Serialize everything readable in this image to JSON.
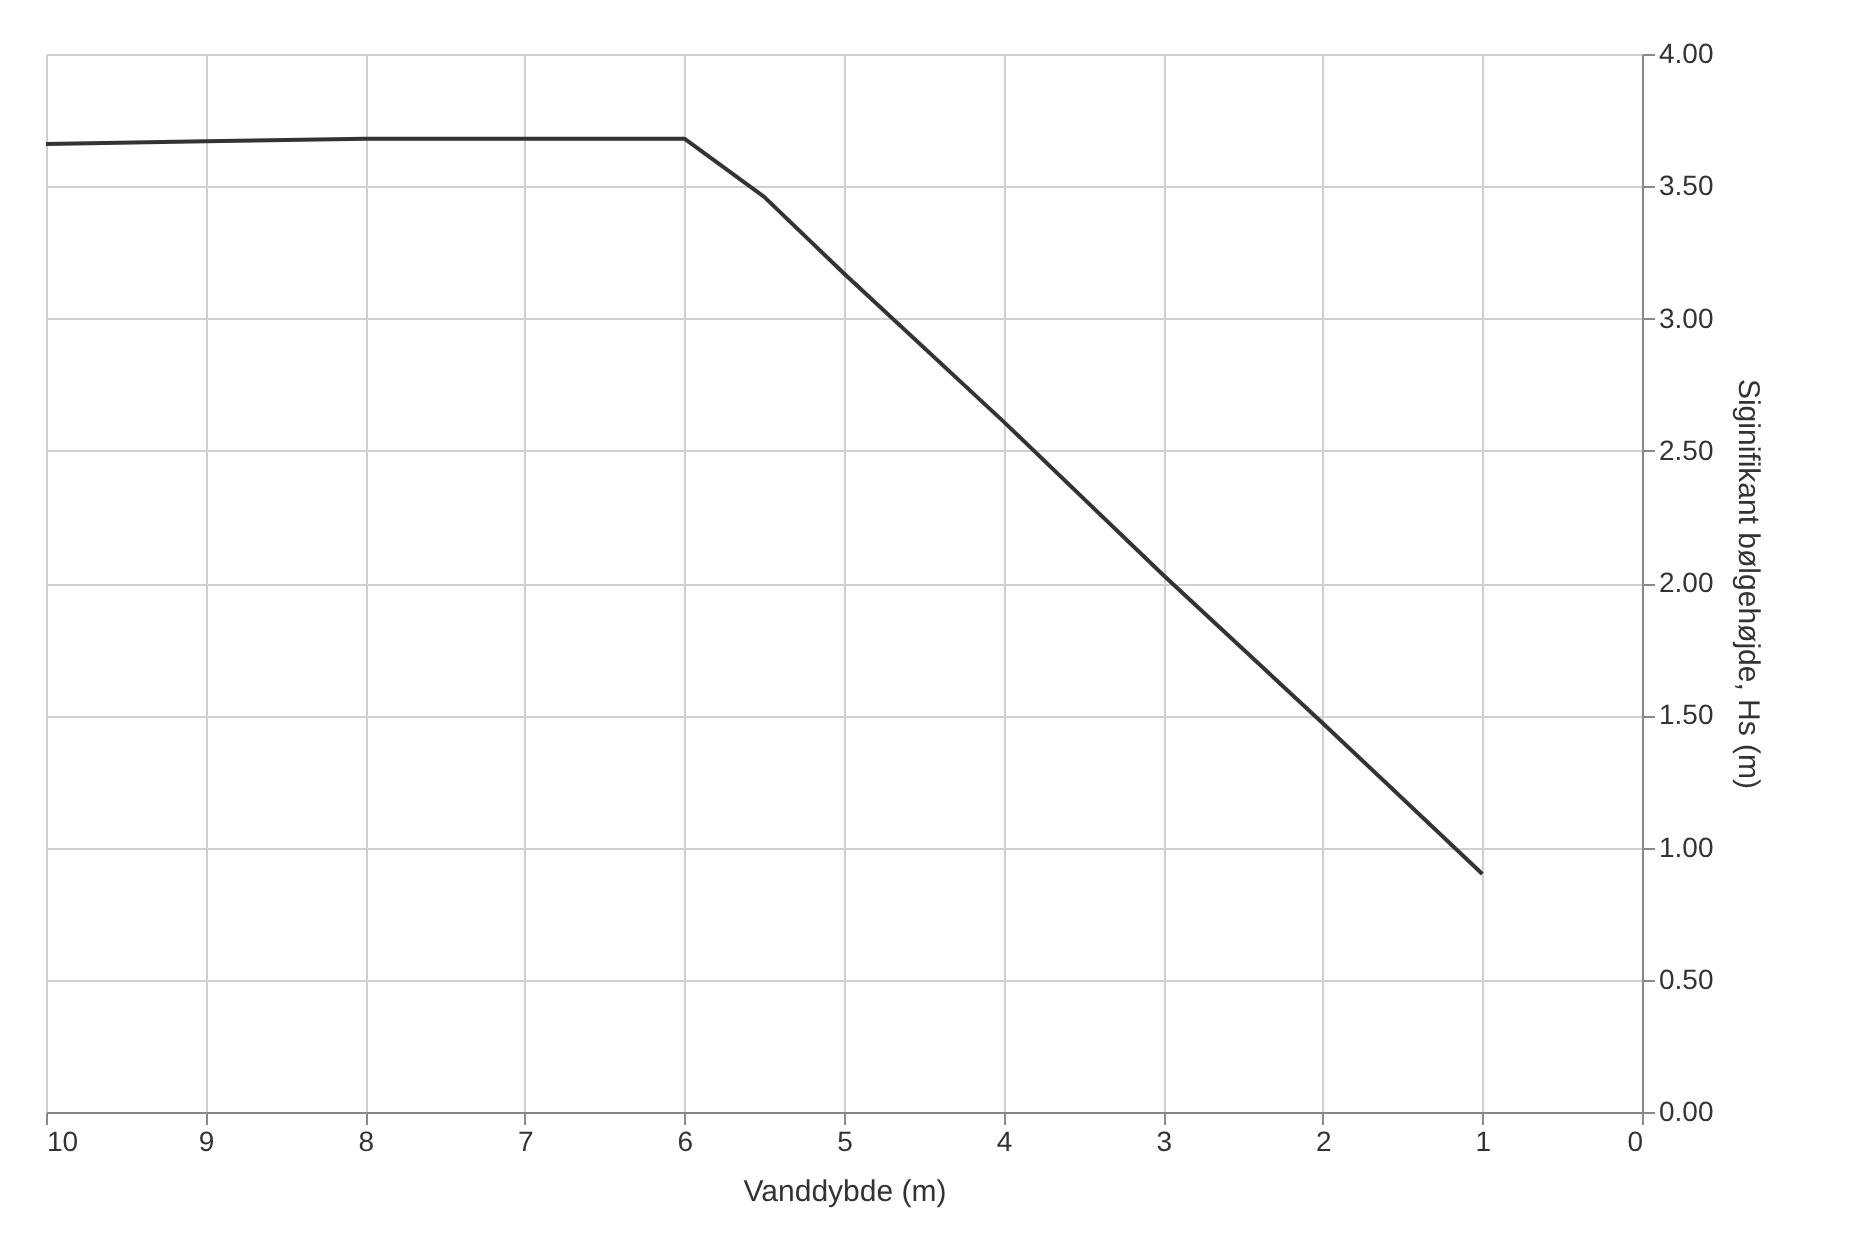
{
  "chart_data": {
    "type": "line",
    "xlabel": "Vanddybde (m)",
    "ylabel": "Siginifikant bølgehøjde, Hs (m)",
    "x": [
      10,
      9,
      8,
      7,
      6,
      5.5,
      5,
      4,
      3,
      2,
      1
    ],
    "series": [
      {
        "color": "#333333",
        "values": [
          3.66,
          3.67,
          3.68,
          3.68,
          3.68,
          3.46,
          3.17,
          2.61,
          2.03,
          1.47,
          0.9
        ]
      }
    ],
    "xlim": [
      10,
      0
    ],
    "xticks": [
      10,
      9,
      8,
      7,
      6,
      5,
      4,
      3,
      2,
      1,
      0
    ],
    "ylim": [
      0,
      4
    ],
    "yticks": [
      {
        "value": 0,
        "label": "0.00"
      },
      {
        "value": 0.5,
        "label": "0.50"
      },
      {
        "value": 1,
        "label": "1.00"
      },
      {
        "value": 1.5,
        "label": "1.50"
      },
      {
        "value": 2,
        "label": "2.00"
      },
      {
        "value": 2.5,
        "label": "2.50"
      },
      {
        "value": 3,
        "label": "3.00"
      },
      {
        "value": 3.5,
        "label": "3.50"
      },
      {
        "value": 4,
        "label": "4.00"
      }
    ],
    "grid": true,
    "marker": "none",
    "line_style": "solid"
  }
}
